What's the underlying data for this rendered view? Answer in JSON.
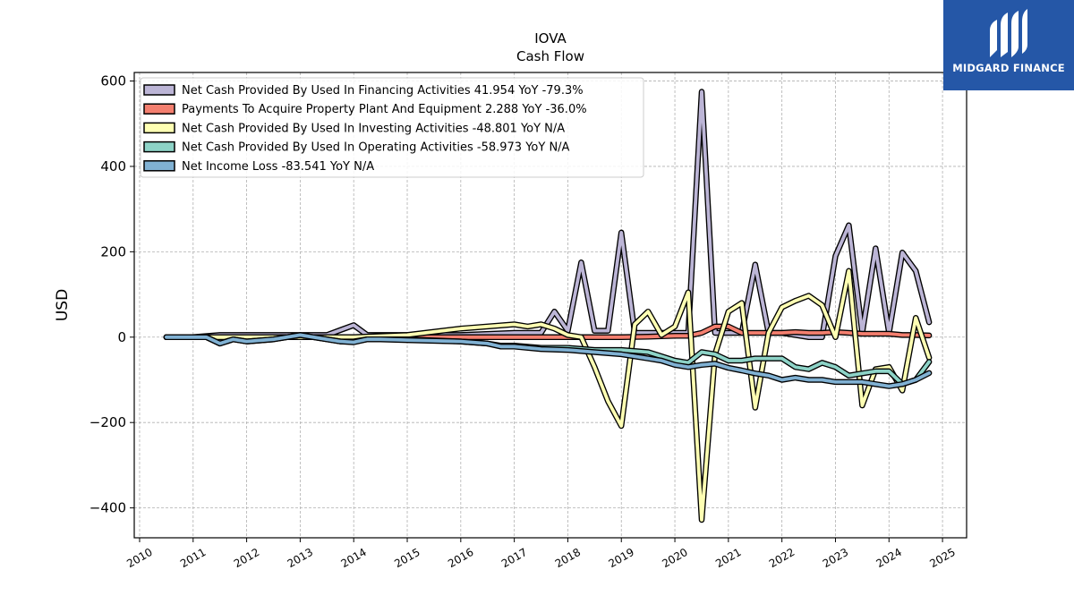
{
  "title": "IOVA",
  "subtitle": "Cash Flow",
  "logo": {
    "text": "MIDGARD FINANCE",
    "background": "#2557a7"
  },
  "chart_data": {
    "type": "line",
    "title": "IOVA",
    "subtitle": "Cash Flow",
    "xlabel": "",
    "ylabel": "USD",
    "xlim": [
      2009.9,
      2025.45
    ],
    "ylim": [
      -470,
      620
    ],
    "x_ticks": [
      "2010",
      "2011",
      "2012",
      "2013",
      "2014",
      "2015",
      "2016",
      "2017",
      "2018",
      "2019",
      "2020",
      "2021",
      "2022",
      "2023",
      "2024",
      "2025"
    ],
    "y_ticks": [
      600,
      400,
      200,
      0,
      -200,
      -400
    ],
    "y_tick_labels": [
      "600",
      "400",
      "200",
      "0",
      "−200",
      "−400"
    ],
    "grid": true,
    "legend_position": "top-left",
    "series": [
      {
        "name": "Net Cash Provided By Used In Financing Activities",
        "legend_label": "Net Cash Provided By Used In Financing Activities  41.954 YoY -79.3%",
        "color": "#bcb5d6",
        "points": [
          [
            2010.5,
            0
          ],
          [
            2011.0,
            0
          ],
          [
            2011.5,
            5
          ],
          [
            2012.0,
            5
          ],
          [
            2012.5,
            5
          ],
          [
            2013.0,
            5
          ],
          [
            2013.5,
            5
          ],
          [
            2014.0,
            28
          ],
          [
            2014.25,
            5
          ],
          [
            2014.5,
            5
          ],
          [
            2015.0,
            5
          ],
          [
            2016.0,
            5
          ],
          [
            2017.0,
            10
          ],
          [
            2017.5,
            10
          ],
          [
            2017.75,
            60
          ],
          [
            2018.0,
            15
          ],
          [
            2018.25,
            175
          ],
          [
            2018.5,
            15
          ],
          [
            2018.75,
            15
          ],
          [
            2019.0,
            245
          ],
          [
            2019.25,
            10
          ],
          [
            2019.5,
            10
          ],
          [
            2019.75,
            10
          ],
          [
            2020.0,
            10
          ],
          [
            2020.25,
            10
          ],
          [
            2020.5,
            575
          ],
          [
            2020.75,
            10
          ],
          [
            2021.0,
            10
          ],
          [
            2021.25,
            10
          ],
          [
            2021.5,
            170
          ],
          [
            2021.75,
            10
          ],
          [
            2022.0,
            10
          ],
          [
            2022.25,
            5
          ],
          [
            2022.5,
            0
          ],
          [
            2022.75,
            0
          ],
          [
            2023.0,
            190
          ],
          [
            2023.25,
            262
          ],
          [
            2023.5,
            10
          ],
          [
            2023.75,
            208
          ],
          [
            2024.0,
            10
          ],
          [
            2024.25,
            198
          ],
          [
            2024.5,
            155
          ],
          [
            2024.75,
            35
          ]
        ]
      },
      {
        "name": "Payments To Acquire Property Plant And Equipment",
        "legend_label": "Payments To Acquire Property Plant And Equipment  2.288 YoY -36.0%",
        "color": "#f47f6f",
        "points": [
          [
            2010.5,
            0
          ],
          [
            2011.0,
            0
          ],
          [
            2011.5,
            0
          ],
          [
            2012.0,
            0
          ],
          [
            2013.0,
            0
          ],
          [
            2014.0,
            0
          ],
          [
            2015.0,
            0
          ],
          [
            2016.0,
            0
          ],
          [
            2017.0,
            0
          ],
          [
            2017.5,
            0
          ],
          [
            2018.0,
            0
          ],
          [
            2018.5,
            0
          ],
          [
            2019.0,
            0
          ],
          [
            2019.5,
            1
          ],
          [
            2020.0,
            3
          ],
          [
            2020.25,
            3
          ],
          [
            2020.5,
            10
          ],
          [
            2020.75,
            25
          ],
          [
            2021.0,
            25
          ],
          [
            2021.25,
            10
          ],
          [
            2021.5,
            10
          ],
          [
            2021.75,
            10
          ],
          [
            2022.0,
            10
          ],
          [
            2022.25,
            12
          ],
          [
            2022.5,
            10
          ],
          [
            2022.75,
            10
          ],
          [
            2023.0,
            12
          ],
          [
            2023.25,
            10
          ],
          [
            2023.5,
            8
          ],
          [
            2023.75,
            8
          ],
          [
            2024.0,
            8
          ],
          [
            2024.25,
            5
          ],
          [
            2024.5,
            5
          ],
          [
            2024.75,
            4
          ]
        ]
      },
      {
        "name": "Net Cash Provided By Used In Investing Activities",
        "legend_label": "Net Cash Provided By Used In Investing Activities  -48.801 YoY N/A",
        "color": "#feffb3",
        "points": [
          [
            2010.5,
            0
          ],
          [
            2011.0,
            0
          ],
          [
            2012.0,
            0
          ],
          [
            2013.0,
            0
          ],
          [
            2014.0,
            0
          ],
          [
            2015.0,
            5
          ],
          [
            2016.0,
            20
          ],
          [
            2017.0,
            30
          ],
          [
            2017.25,
            25
          ],
          [
            2017.5,
            30
          ],
          [
            2017.75,
            20
          ],
          [
            2018.0,
            5
          ],
          [
            2018.25,
            0
          ],
          [
            2018.5,
            -70
          ],
          [
            2018.75,
            -150
          ],
          [
            2019.0,
            -208
          ],
          [
            2019.25,
            30
          ],
          [
            2019.5,
            60
          ],
          [
            2019.75,
            5
          ],
          [
            2020.0,
            25
          ],
          [
            2020.25,
            105
          ],
          [
            2020.5,
            -428
          ],
          [
            2020.75,
            -40
          ],
          [
            2021.0,
            60
          ],
          [
            2021.25,
            80
          ],
          [
            2021.5,
            -165
          ],
          [
            2021.75,
            10
          ],
          [
            2022.0,
            70
          ],
          [
            2022.25,
            85
          ],
          [
            2022.5,
            97
          ],
          [
            2022.75,
            75
          ],
          [
            2023.0,
            0
          ],
          [
            2023.25,
            155
          ],
          [
            2023.5,
            -160
          ],
          [
            2023.75,
            -75
          ],
          [
            2024.0,
            -70
          ],
          [
            2024.25,
            -125
          ],
          [
            2024.5,
            45
          ],
          [
            2024.75,
            -48
          ]
        ]
      },
      {
        "name": "Net Cash Provided By Used In Operating Activities",
        "legend_label": "Net Cash Provided By Used In Operating Activities  -58.973 YoY N/A",
        "color": "#8dd3c7",
        "points": [
          [
            2010.5,
            0
          ],
          [
            2011.0,
            0
          ],
          [
            2011.25,
            0
          ],
          [
            2011.5,
            -15
          ],
          [
            2011.75,
            -5
          ],
          [
            2012.0,
            -10
          ],
          [
            2012.5,
            -5
          ],
          [
            2013.0,
            5
          ],
          [
            2013.5,
            -5
          ],
          [
            2013.75,
            -10
          ],
          [
            2014.0,
            -10
          ],
          [
            2014.25,
            -5
          ],
          [
            2014.5,
            -5
          ],
          [
            2015.0,
            -5
          ],
          [
            2016.0,
            -10
          ],
          [
            2016.5,
            -15
          ],
          [
            2016.75,
            -20
          ],
          [
            2017.0,
            -20
          ],
          [
            2017.5,
            -25
          ],
          [
            2018.0,
            -25
          ],
          [
            2018.5,
            -30
          ],
          [
            2019.0,
            -30
          ],
          [
            2019.5,
            -35
          ],
          [
            2019.75,
            -45
          ],
          [
            2020.0,
            -55
          ],
          [
            2020.25,
            -60
          ],
          [
            2020.5,
            -35
          ],
          [
            2020.75,
            -40
          ],
          [
            2021.0,
            -55
          ],
          [
            2021.25,
            -55
          ],
          [
            2021.5,
            -50
          ],
          [
            2021.75,
            -50
          ],
          [
            2022.0,
            -50
          ],
          [
            2022.25,
            -70
          ],
          [
            2022.5,
            -75
          ],
          [
            2022.75,
            -60
          ],
          [
            2023.0,
            -70
          ],
          [
            2023.25,
            -90
          ],
          [
            2023.5,
            -85
          ],
          [
            2023.75,
            -80
          ],
          [
            2024.0,
            -80
          ],
          [
            2024.25,
            -110
          ],
          [
            2024.5,
            -100
          ],
          [
            2024.75,
            -58
          ]
        ]
      },
      {
        "name": "Net Income Loss",
        "legend_label": "Net Income Loss  -83.541 YoY N/A",
        "color": "#80b1d3",
        "points": [
          [
            2010.5,
            0
          ],
          [
            2011.0,
            0
          ],
          [
            2011.25,
            0
          ],
          [
            2011.5,
            -15
          ],
          [
            2011.75,
            -5
          ],
          [
            2012.0,
            -10
          ],
          [
            2012.5,
            -5
          ],
          [
            2013.0,
            5
          ],
          [
            2013.5,
            -5
          ],
          [
            2013.75,
            -10
          ],
          [
            2014.0,
            -12
          ],
          [
            2014.25,
            -5
          ],
          [
            2014.5,
            -5
          ],
          [
            2015.0,
            -7
          ],
          [
            2016.0,
            -10
          ],
          [
            2016.5,
            -15
          ],
          [
            2016.75,
            -22
          ],
          [
            2017.0,
            -22
          ],
          [
            2017.5,
            -28
          ],
          [
            2018.0,
            -30
          ],
          [
            2018.5,
            -35
          ],
          [
            2019.0,
            -40
          ],
          [
            2019.5,
            -50
          ],
          [
            2019.75,
            -55
          ],
          [
            2020.0,
            -65
          ],
          [
            2020.25,
            -70
          ],
          [
            2020.5,
            -65
          ],
          [
            2020.75,
            -62
          ],
          [
            2021.0,
            -72
          ],
          [
            2021.25,
            -78
          ],
          [
            2021.5,
            -85
          ],
          [
            2021.75,
            -90
          ],
          [
            2022.0,
            -100
          ],
          [
            2022.25,
            -95
          ],
          [
            2022.5,
            -100
          ],
          [
            2022.75,
            -100
          ],
          [
            2023.0,
            -105
          ],
          [
            2023.25,
            -105
          ],
          [
            2023.5,
            -105
          ],
          [
            2023.75,
            -110
          ],
          [
            2024.0,
            -115
          ],
          [
            2024.25,
            -110
          ],
          [
            2024.5,
            -100
          ],
          [
            2024.75,
            -84
          ]
        ]
      }
    ]
  }
}
